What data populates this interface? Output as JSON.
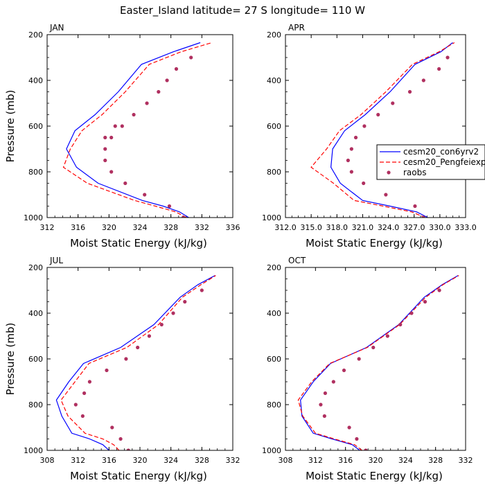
{
  "title": "Easter_Island  latitude= 27 S longitude= 110 W",
  "legend": {
    "entries": [
      {
        "label": "cesm20_con6yrv2",
        "color": "#0000ff",
        "style": "solid"
      },
      {
        "label": "cesm20_Pengfeiexp",
        "color": "#ff0000",
        "style": "dashed"
      },
      {
        "label": "raobs",
        "color": "#b03060",
        "style": "dots"
      }
    ]
  },
  "chart_data": [
    {
      "type": "line",
      "panel_label": "JAN",
      "xlabel": "Moist Static Energy (kJ/kg)",
      "ylabel": "Pressure (mb)",
      "xlim": [
        312,
        336
      ],
      "ylim": [
        1000,
        200
      ],
      "y_inverted": true,
      "xticks": [
        "312",
        "316",
        "320",
        "324",
        "328",
        "332",
        "336"
      ],
      "yticks": [
        "200",
        "400",
        "600",
        "800",
        "1000"
      ],
      "series": [
        {
          "name": "cesm20_con6yrv2",
          "x": [
            330.3,
            329.1,
            327.0,
            324.3,
            318.6,
            315.8,
            314.5,
            315.6,
            318.2,
            321.2,
            324.2,
            328.3,
            331.8
          ],
          "y": [
            1000,
            975,
            950,
            925,
            850,
            780,
            700,
            620,
            550,
            450,
            330,
            275,
            235
          ]
        },
        {
          "name": "cesm20_Pengfeiexp",
          "x": [
            330.0,
            328.6,
            326.0,
            323.3,
            317.2,
            314.1,
            315.0,
            316.5,
            319.1,
            322.1,
            325.2,
            329.3,
            333.3
          ],
          "y": [
            1000,
            975,
            950,
            925,
            850,
            780,
            700,
            620,
            550,
            450,
            330,
            275,
            235
          ]
        },
        {
          "name": "raobs",
          "x": [
            329.6,
            327.8,
            324.6,
            322.1,
            320.3,
            319.5,
            319.5,
            319.5,
            320.3,
            320.8,
            321.7,
            323.2,
            324.9,
            326.4,
            327.5,
            328.7,
            330.6
          ],
          "y": [
            1000,
            950,
            900,
            850,
            800,
            750,
            700,
            650,
            650,
            600,
            600,
            550,
            500,
            450,
            400,
            350,
            300
          ]
        }
      ]
    },
    {
      "type": "line",
      "panel_label": "APR",
      "xlabel": "Moist Static Energy (kJ/kg)",
      "ylabel": "",
      "xlim": [
        312,
        333
      ],
      "ylim": [
        1000,
        200
      ],
      "y_inverted": true,
      "xticks": [
        "312.0",
        "315.0",
        "318.0",
        "321.0",
        "324.0",
        "327.0",
        "330.0",
        "333.0"
      ],
      "yticks": [
        "200",
        "400",
        "600",
        "800",
        "1000"
      ],
      "series": [
        {
          "name": "cesm20_con6yrv2",
          "x": [
            328.6,
            327.3,
            324.2,
            321.0,
            318.4,
            317.3,
            317.5,
            318.9,
            321.3,
            324.2,
            327.1,
            330.1,
            331.5
          ],
          "y": [
            1000,
            975,
            950,
            925,
            850,
            780,
            700,
            620,
            550,
            450,
            330,
            275,
            235
          ]
        },
        {
          "name": "cesm20_Pengfeiexp",
          "x": [
            328.3,
            326.7,
            323.4,
            320.0,
            317.6,
            315.0,
            316.8,
            318.3,
            320.8,
            323.7,
            326.8,
            329.9,
            331.7
          ],
          "y": [
            1000,
            975,
            950,
            925,
            850,
            780,
            700,
            620,
            550,
            450,
            330,
            275,
            235
          ]
        },
        {
          "name": "raobs",
          "x": [
            328.1,
            327.1,
            323.7,
            321.1,
            319.7,
            319.3,
            319.7,
            320.2,
            321.2,
            322.8,
            324.5,
            326.5,
            328.1,
            329.9,
            330.9
          ],
          "y": [
            1000,
            950,
            900,
            850,
            800,
            750,
            700,
            650,
            600,
            550,
            500,
            450,
            400,
            350,
            300
          ]
        }
      ]
    },
    {
      "type": "line",
      "panel_label": "JUL",
      "xlabel": "Moist Static Energy (kJ/kg)",
      "ylabel": "Pressure (mb)",
      "xlim": [
        308,
        332
      ],
      "ylim": [
        1000,
        200
      ],
      "y_inverted": true,
      "xticks": [
        "308",
        "312",
        "316",
        "320",
        "324",
        "328",
        "332"
      ],
      "yticks": [
        "200",
        "400",
        "600",
        "800",
        "1000"
      ],
      "series": [
        {
          "name": "cesm20_con6yrv2",
          "x": [
            316.0,
            315.2,
            313.5,
            311.2,
            309.9,
            309.2,
            310.8,
            312.7,
            317.5,
            321.8,
            325.2,
            327.5,
            329.7
          ],
          "y": [
            1000,
            975,
            950,
            925,
            850,
            780,
            700,
            620,
            550,
            450,
            330,
            275,
            235
          ]
        },
        {
          "name": "cesm20_Pengfeiexp",
          "x": [
            317.3,
            316.6,
            315.2,
            312.9,
            310.7,
            309.8,
            311.6,
            313.4,
            318.3,
            322.4,
            325.5,
            327.9,
            329.8
          ],
          "y": [
            1000,
            975,
            950,
            925,
            850,
            780,
            700,
            620,
            550,
            450,
            330,
            275,
            235
          ]
        },
        {
          "name": "raobs",
          "x": [
            318.5,
            317.5,
            316.4,
            312.6,
            311.7,
            312.8,
            313.5,
            315.7,
            318.2,
            319.7,
            321.2,
            322.8,
            324.3,
            325.8,
            328.0
          ],
          "y": [
            1000,
            950,
            900,
            850,
            800,
            750,
            700,
            650,
            600,
            550,
            500,
            450,
            400,
            350,
            300
          ]
        }
      ]
    },
    {
      "type": "line",
      "panel_label": "OCT",
      "xlabel": "Moist Static Energy (kJ/kg)",
      "ylabel": "",
      "xlim": [
        308,
        332
      ],
      "ylim": [
        1000,
        200
      ],
      "y_inverted": true,
      "xticks": [
        "308",
        "312",
        "316",
        "320",
        "324",
        "328",
        "332"
      ],
      "yticks": [
        "200",
        "400",
        "600",
        "800",
        "1000"
      ],
      "series": [
        {
          "name": "cesm20_con6yrv2",
          "x": [
            317.9,
            316.9,
            314.2,
            311.7,
            310.2,
            310.0,
            311.7,
            314.0,
            318.8,
            323.1,
            326.5,
            328.9,
            331.0
          ],
          "y": [
            1000,
            975,
            950,
            925,
            850,
            780,
            700,
            620,
            550,
            450,
            330,
            275,
            235
          ]
        },
        {
          "name": "cesm20_Pengfeiexp",
          "x": [
            318.2,
            317.2,
            314.5,
            312.0,
            310.3,
            309.7,
            311.5,
            313.9,
            318.9,
            323.2,
            326.7,
            329.0,
            331.1
          ],
          "y": [
            1000,
            975,
            950,
            925,
            850,
            780,
            700,
            620,
            550,
            450,
            330,
            275,
            235
          ]
        },
        {
          "name": "raobs",
          "x": [
            318.7,
            317.5,
            316.5,
            313.2,
            312.7,
            313.3,
            314.4,
            315.8,
            317.8,
            319.7,
            321.6,
            323.3,
            324.8,
            326.6,
            328.5
          ],
          "y": [
            1000,
            950,
            900,
            850,
            800,
            750,
            700,
            650,
            600,
            550,
            500,
            450,
            400,
            350,
            300
          ]
        }
      ]
    }
  ]
}
